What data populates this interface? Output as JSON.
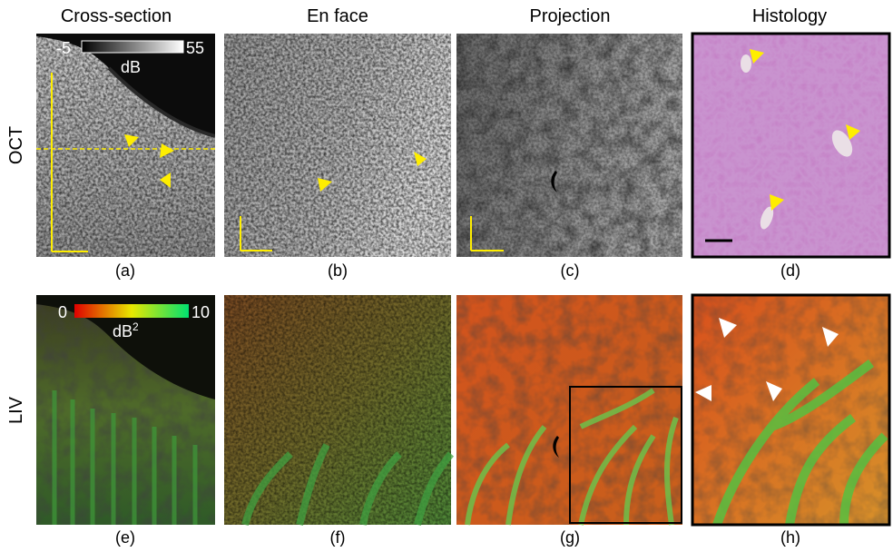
{
  "columns": [
    "Cross-section",
    "En face",
    "Projection",
    "Histology"
  ],
  "rows": [
    "OCT",
    "LIV"
  ],
  "panels": [
    "(a)",
    "(b)",
    "(c)",
    "(d)",
    "(e)",
    "(f)",
    "(g)",
    "(h)"
  ],
  "colorbars": [
    {
      "min": "-5",
      "max": "55",
      "unit": "dB"
    },
    {
      "min": "0",
      "max": "10",
      "unit": "dB",
      "superscript": "2"
    }
  ]
}
